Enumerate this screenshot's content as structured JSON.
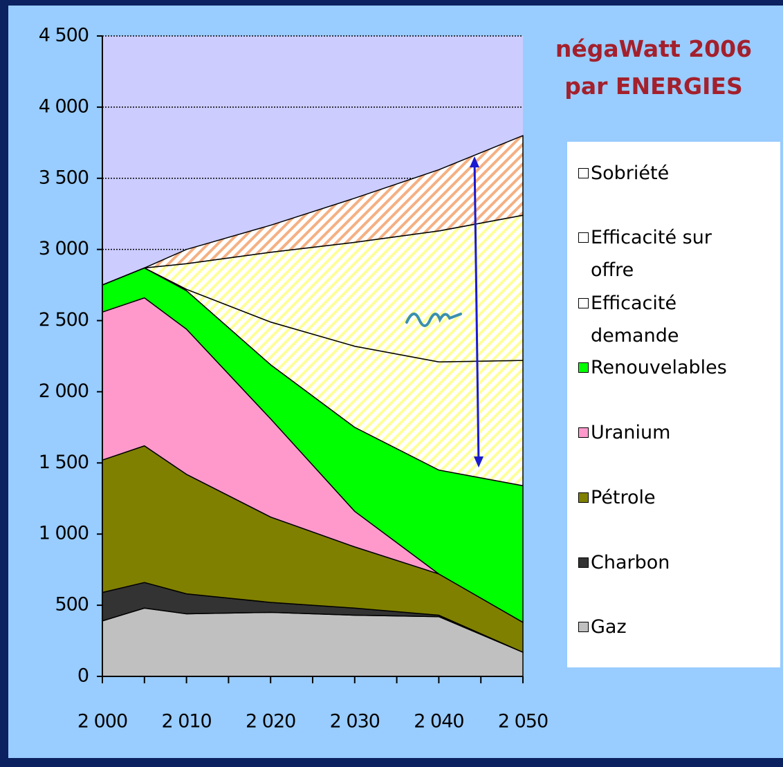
{
  "chart_data": {
    "type": "stacked_area",
    "title": "négaWatt 2006",
    "subtitle": "par ENERGIES",
    "x": [
      2000,
      2005,
      2010,
      2020,
      2030,
      2040,
      2050
    ],
    "series": [
      {
        "name": "Gaz",
        "color": "#c0c0c0",
        "values": [
          390,
          480,
          440,
          450,
          430,
          420,
          170
        ]
      },
      {
        "name": "Charbon",
        "color": "#333333",
        "values": [
          200,
          180,
          140,
          70,
          50,
          10,
          0
        ]
      },
      {
        "name": "Pétrole",
        "color": "#808000",
        "values": [
          930,
          960,
          840,
          600,
          430,
          290,
          210
        ]
      },
      {
        "name": "Uranium",
        "color": "#ff99cc",
        "values": [
          1040,
          1040,
          1020,
          690,
          250,
          0,
          0
        ]
      },
      {
        "name": "Renouvelables",
        "color": "#00ff00",
        "values": [
          190,
          210,
          270,
          380,
          590,
          730,
          960
        ]
      },
      {
        "name": "Efficacité demande",
        "color": "#ffff99",
        "pattern": "hatch",
        "values": [
          0,
          0,
          10,
          300,
          570,
          760,
          880
        ]
      },
      {
        "name": "Efficacité sur offre",
        "color": "#ffff99",
        "pattern": "hatch",
        "values": [
          0,
          0,
          180,
          490,
          730,
          920,
          1020
        ]
      },
      {
        "name": "Sobriété",
        "color": "#f4b083",
        "pattern": "hatch",
        "values": [
          0,
          0,
          100,
          190,
          310,
          430,
          560
        ]
      }
    ],
    "xlim": [
      2000,
      2050
    ],
    "xticks": [
      {
        "value": 2000,
        "label": "2 000"
      },
      {
        "value": 2010,
        "label": "2 010"
      },
      {
        "value": 2020,
        "label": "2 020"
      },
      {
        "value": 2030,
        "label": "2 030"
      },
      {
        "value": 2040,
        "label": "2 040"
      },
      {
        "value": 2050,
        "label": "2 050"
      }
    ],
    "ylim": [
      0,
      4500
    ],
    "yticks": [
      0,
      500,
      {
        "value": 1000,
        "label": "1 000"
      },
      {
        "value": 1500,
        "label": "1 500"
      },
      {
        "value": 2000,
        "label": "2 000"
      },
      {
        "value": 2500,
        "label": "2 500"
      },
      {
        "value": 3000,
        "label": "3 000"
      },
      {
        "value": 3500,
        "label": "3 500"
      },
      {
        "value": 4000,
        "label": "4 000"
      },
      {
        "value": 4500,
        "label": "4 500"
      }
    ],
    "grid": true,
    "legend": "right"
  }
}
